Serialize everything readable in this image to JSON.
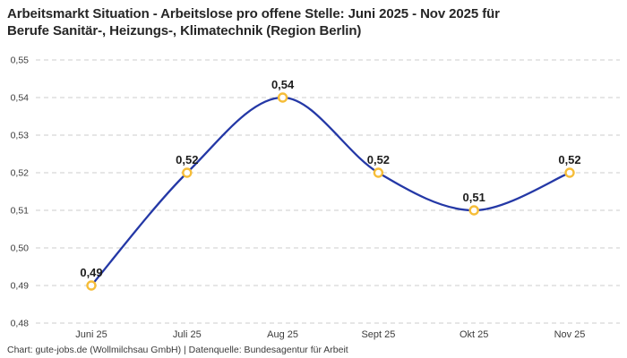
{
  "title": {
    "lines": [
      "Arbeitsmarkt Situation - Arbeitslose pro offene Stelle: Juni 2025 - Nov 2025 für",
      "Berufe Sanitär-, Heizungs-, Klimatechnik (Region Berlin)"
    ]
  },
  "footer": {
    "text": "Chart: gute-jobs.de (Wollmilchsau GmbH) | Datenquelle: Bundesagentur für Arbeit"
  },
  "chart_data": {
    "type": "line",
    "title": "Arbeitsmarkt Situation - Arbeitslose pro offene Stelle: Juni 2025 - Nov 2025 für Berufe Sanitär-, Heizungs-, Klimatechnik (Region Berlin)",
    "categories": [
      "Juni 25",
      "Juli 25",
      "Aug 25",
      "Sept 25",
      "Okt 25",
      "Nov 25"
    ],
    "values": [
      0.49,
      0.52,
      0.54,
      0.52,
      0.51,
      0.52
    ],
    "point_labels": [
      "0,49",
      "0,52",
      "0,54",
      "0,52",
      "0,51",
      "0,52"
    ],
    "ylim": [
      0.48,
      0.55
    ],
    "ytick_values": [
      0.55,
      0.54,
      0.53,
      0.52,
      0.51,
      0.5,
      0.49,
      0.48
    ],
    "ytick_labels": [
      "0,55",
      "0,54",
      "0,53",
      "0,52",
      "0,51",
      "0,50",
      "0,49",
      "0,48"
    ],
    "xlabel": "",
    "ylabel": "",
    "grid": "horizontal-dashed",
    "legend": "none",
    "line_style": "smooth-spline",
    "colors": {
      "line": "#2438a6",
      "marker": "#f6bd38",
      "marker_fill": "#ffffff",
      "grid": "#cccccc",
      "label": "#1c1c1c",
      "axis_text": "#3c3c3c"
    }
  }
}
